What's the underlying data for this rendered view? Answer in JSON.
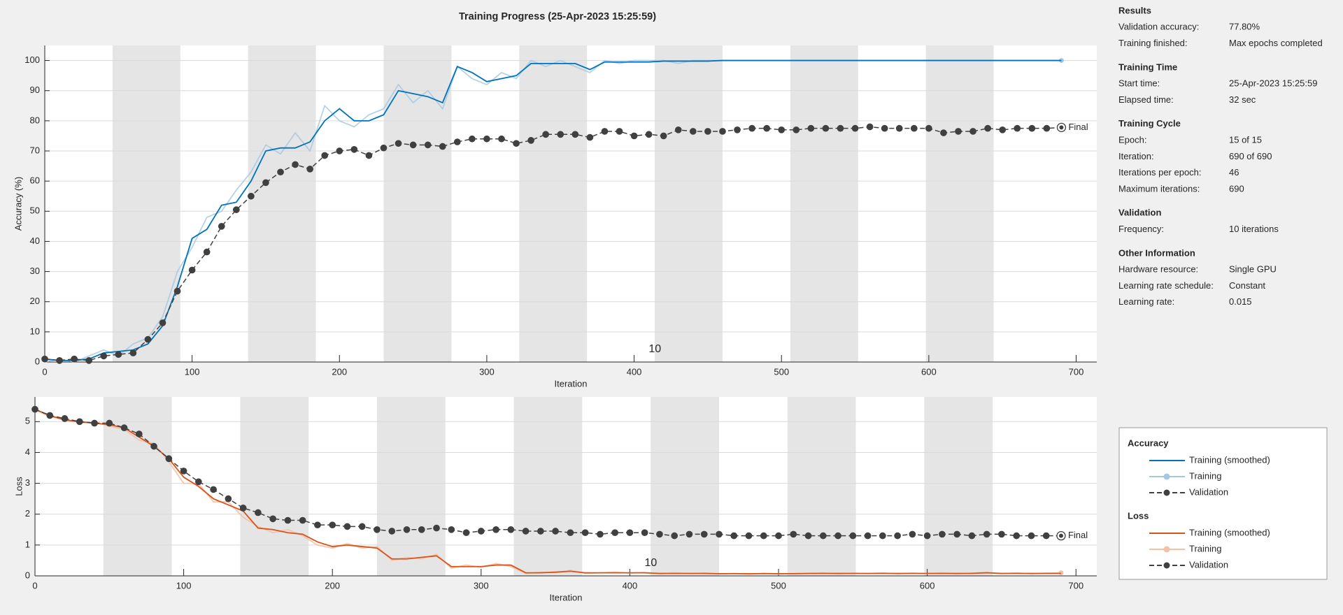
{
  "chart_data": [
    {
      "type": "line",
      "title": "Training Progress (25-Apr-2023 15:25:59)",
      "xlabel": "Iteration",
      "ylabel": "Accuracy (%)",
      "legend_title": "Accuracy",
      "annotation": "10",
      "final_label": "Final",
      "epoch_length": 46,
      "grid": true,
      "xlim": [
        0,
        714
      ],
      "xticks": [
        0,
        100,
        200,
        300,
        400,
        500,
        600,
        700
      ],
      "ylim": [
        0,
        105
      ],
      "yticks": [
        0,
        10,
        20,
        30,
        40,
        50,
        60,
        70,
        80,
        90,
        100
      ],
      "x": [
        0,
        10,
        20,
        30,
        40,
        50,
        60,
        70,
        80,
        90,
        100,
        110,
        120,
        130,
        140,
        150,
        160,
        170,
        180,
        190,
        200,
        210,
        220,
        230,
        240,
        250,
        260,
        270,
        280,
        290,
        300,
        310,
        320,
        330,
        340,
        350,
        360,
        370,
        380,
        390,
        400,
        410,
        420,
        430,
        440,
        450,
        460,
        470,
        480,
        490,
        500,
        510,
        520,
        530,
        540,
        550,
        560,
        570,
        580,
        590,
        600,
        610,
        620,
        630,
        640,
        650,
        660,
        670,
        680,
        690
      ],
      "series": [
        {
          "name": "Training",
          "color": "#a5c6e1",
          "opacity": 0.8,
          "marker": "o",
          "values": [
            0,
            1,
            0,
            2,
            4,
            2,
            6,
            8,
            15,
            30,
            38,
            48,
            50,
            57,
            63,
            72,
            69,
            76,
            70,
            85,
            80,
            78,
            82,
            84,
            92,
            86,
            90,
            84,
            98,
            94,
            92,
            96,
            94,
            100,
            98,
            100,
            98,
            96,
            100,
            99,
            100,
            100,
            100,
            99,
            100,
            100,
            100,
            100,
            100,
            100,
            100,
            100,
            100,
            100,
            100,
            100,
            100,
            100,
            100,
            100,
            100,
            100,
            100,
            100,
            100,
            100,
            100,
            100,
            100,
            100
          ]
        },
        {
          "name": "Training (smoothed)",
          "color": "#0072bd",
          "values": [
            1,
            0.5,
            0.5,
            1,
            3,
            3.5,
            4,
            6,
            12,
            25,
            41,
            44,
            52,
            53,
            60,
            70,
            71,
            71,
            73,
            80,
            84,
            80,
            80,
            82,
            90,
            89,
            88,
            86,
            98,
            96,
            93,
            94,
            95,
            99,
            99,
            99,
            99,
            97,
            99.5,
            99.5,
            99.5,
            99.5,
            99.8,
            99.8,
            99.8,
            99.8,
            100,
            100,
            100,
            100,
            100,
            100,
            100,
            100,
            100,
            100,
            100,
            100,
            100,
            100,
            100,
            100,
            100,
            100,
            100,
            100,
            100,
            100,
            100,
            100
          ]
        },
        {
          "name": "Validation",
          "color": "#404040",
          "line_style": "dashed",
          "marker": "o",
          "values": [
            1,
            0.5,
            1,
            0.5,
            2,
            2.5,
            3,
            7.5,
            13,
            23.5,
            30.5,
            36.5,
            45,
            50.5,
            55,
            59.5,
            63,
            65.5,
            64,
            68.5,
            70,
            70.5,
            68.5,
            71,
            72.5,
            72,
            72,
            71.5,
            73,
            74,
            74,
            74,
            72.5,
            73.5,
            75.5,
            75.5,
            75.5,
            74.5,
            76.5,
            76.5,
            75,
            75.5,
            75,
            77,
            76.5,
            76.5,
            76.5,
            77,
            77.5,
            77.5,
            77,
            77,
            77.5,
            77.5,
            77.5,
            77.5,
            78,
            77.5,
            77.5,
            77.5,
            77.5,
            76,
            76.5,
            76.5,
            77.5,
            77,
            77.5,
            77.5,
            77.5,
            77.8
          ]
        }
      ]
    },
    {
      "type": "line",
      "xlabel": "Iteration",
      "ylabel": "Loss",
      "legend_title": "Loss",
      "annotation": "10",
      "final_label": "Final",
      "epoch_length": 46,
      "grid": true,
      "xlim": [
        0,
        714
      ],
      "xticks": [
        0,
        100,
        200,
        300,
        400,
        500,
        600,
        700
      ],
      "ylim": [
        0,
        5.8
      ],
      "yticks": [
        0,
        1,
        2,
        3,
        4,
        5
      ],
      "x": [
        0,
        10,
        20,
        30,
        40,
        50,
        60,
        70,
        80,
        90,
        100,
        110,
        120,
        130,
        140,
        150,
        160,
        170,
        180,
        190,
        200,
        210,
        220,
        230,
        240,
        250,
        260,
        270,
        280,
        290,
        300,
        310,
        320,
        330,
        340,
        350,
        360,
        370,
        380,
        390,
        400,
        410,
        420,
        430,
        440,
        450,
        460,
        470,
        480,
        490,
        500,
        510,
        520,
        530,
        540,
        550,
        560,
        570,
        580,
        590,
        600,
        610,
        620,
        630,
        640,
        650,
        660,
        670,
        680,
        690
      ],
      "series": [
        {
          "name": "Training",
          "color": "#f3c1a6",
          "opacity": 0.9,
          "marker": "o",
          "values": [
            5.4,
            5.15,
            5.1,
            4.95,
            5.0,
            4.85,
            4.75,
            4.4,
            4.3,
            3.7,
            3.0,
            3.0,
            2.4,
            2.4,
            1.9,
            1.6,
            1.4,
            1.5,
            1.3,
            1.0,
            0.9,
            1.05,
            0.9,
            0.95,
            0.5,
            0.6,
            0.55,
            0.7,
            0.25,
            0.35,
            0.28,
            0.4,
            0.3,
            0.08,
            0.12,
            0.1,
            0.18,
            0.08,
            0.1,
            0.12,
            0.09,
            0.11,
            0.06,
            0.1,
            0.07,
            0.09,
            0.06,
            0.08,
            0.05,
            0.09,
            0.06,
            0.08,
            0.07,
            0.1,
            0.06,
            0.09,
            0.07,
            0.1,
            0.06,
            0.09,
            0.07,
            0.1,
            0.06,
            0.09,
            0.12,
            0.07,
            0.1,
            0.06,
            0.09,
            0.1
          ]
        },
        {
          "name": "Training (smoothed)",
          "color": "#d95319",
          "values": [
            5.4,
            5.2,
            5.05,
            5.0,
            4.95,
            4.9,
            4.8,
            4.5,
            4.2,
            3.8,
            3.2,
            2.9,
            2.5,
            2.3,
            2.1,
            1.55,
            1.5,
            1.4,
            1.35,
            1.1,
            0.95,
            1.0,
            0.95,
            0.9,
            0.55,
            0.55,
            0.6,
            0.65,
            0.3,
            0.3,
            0.3,
            0.35,
            0.35,
            0.1,
            0.1,
            0.12,
            0.15,
            0.1,
            0.1,
            0.1,
            0.1,
            0.1,
            0.08,
            0.08,
            0.08,
            0.08,
            0.07,
            0.07,
            0.07,
            0.07,
            0.07,
            0.07,
            0.08,
            0.08,
            0.08,
            0.08,
            0.08,
            0.08,
            0.08,
            0.08,
            0.08,
            0.08,
            0.08,
            0.08,
            0.1,
            0.08,
            0.08,
            0.08,
            0.08,
            0.08
          ]
        },
        {
          "name": "Validation",
          "color": "#404040",
          "line_style": "dashed",
          "marker": "o",
          "values": [
            5.4,
            5.2,
            5.1,
            5.0,
            4.95,
            4.95,
            4.8,
            4.6,
            4.2,
            3.8,
            3.4,
            3.05,
            2.8,
            2.5,
            2.2,
            2.05,
            1.85,
            1.8,
            1.8,
            1.65,
            1.65,
            1.6,
            1.6,
            1.5,
            1.45,
            1.5,
            1.5,
            1.55,
            1.5,
            1.4,
            1.45,
            1.5,
            1.5,
            1.45,
            1.45,
            1.45,
            1.4,
            1.4,
            1.35,
            1.4,
            1.4,
            1.4,
            1.35,
            1.3,
            1.35,
            1.35,
            1.35,
            1.3,
            1.3,
            1.3,
            1.3,
            1.35,
            1.3,
            1.3,
            1.3,
            1.3,
            1.3,
            1.3,
            1.3,
            1.35,
            1.3,
            1.35,
            1.35,
            1.3,
            1.35,
            1.35,
            1.3,
            1.3,
            1.3,
            1.3
          ]
        }
      ]
    }
  ],
  "info": {
    "sections": [
      {
        "heading": "Results",
        "rows": [
          [
            "Validation accuracy:",
            "77.80%"
          ],
          [
            "Training finished:",
            "Max epochs completed"
          ]
        ]
      },
      {
        "heading": "Training Time",
        "rows": [
          [
            "Start time:",
            "25-Apr-2023 15:25:59"
          ],
          [
            "Elapsed time:",
            "32 sec"
          ]
        ]
      },
      {
        "heading": "Training Cycle",
        "rows": [
          [
            "Epoch:",
            "15 of 15"
          ],
          [
            "Iteration:",
            "690 of 690"
          ],
          [
            "Iterations per epoch:",
            "46"
          ],
          [
            "Maximum iterations:",
            "690"
          ]
        ]
      },
      {
        "heading": "Validation",
        "rows": [
          [
            "Frequency:",
            "10 iterations"
          ]
        ]
      },
      {
        "heading": "Other Information",
        "rows": [
          [
            "Hardware resource:",
            "Single GPU"
          ],
          [
            "Learning rate schedule:",
            "Constant"
          ],
          [
            "Learning rate:",
            "0.015"
          ]
        ]
      }
    ]
  }
}
